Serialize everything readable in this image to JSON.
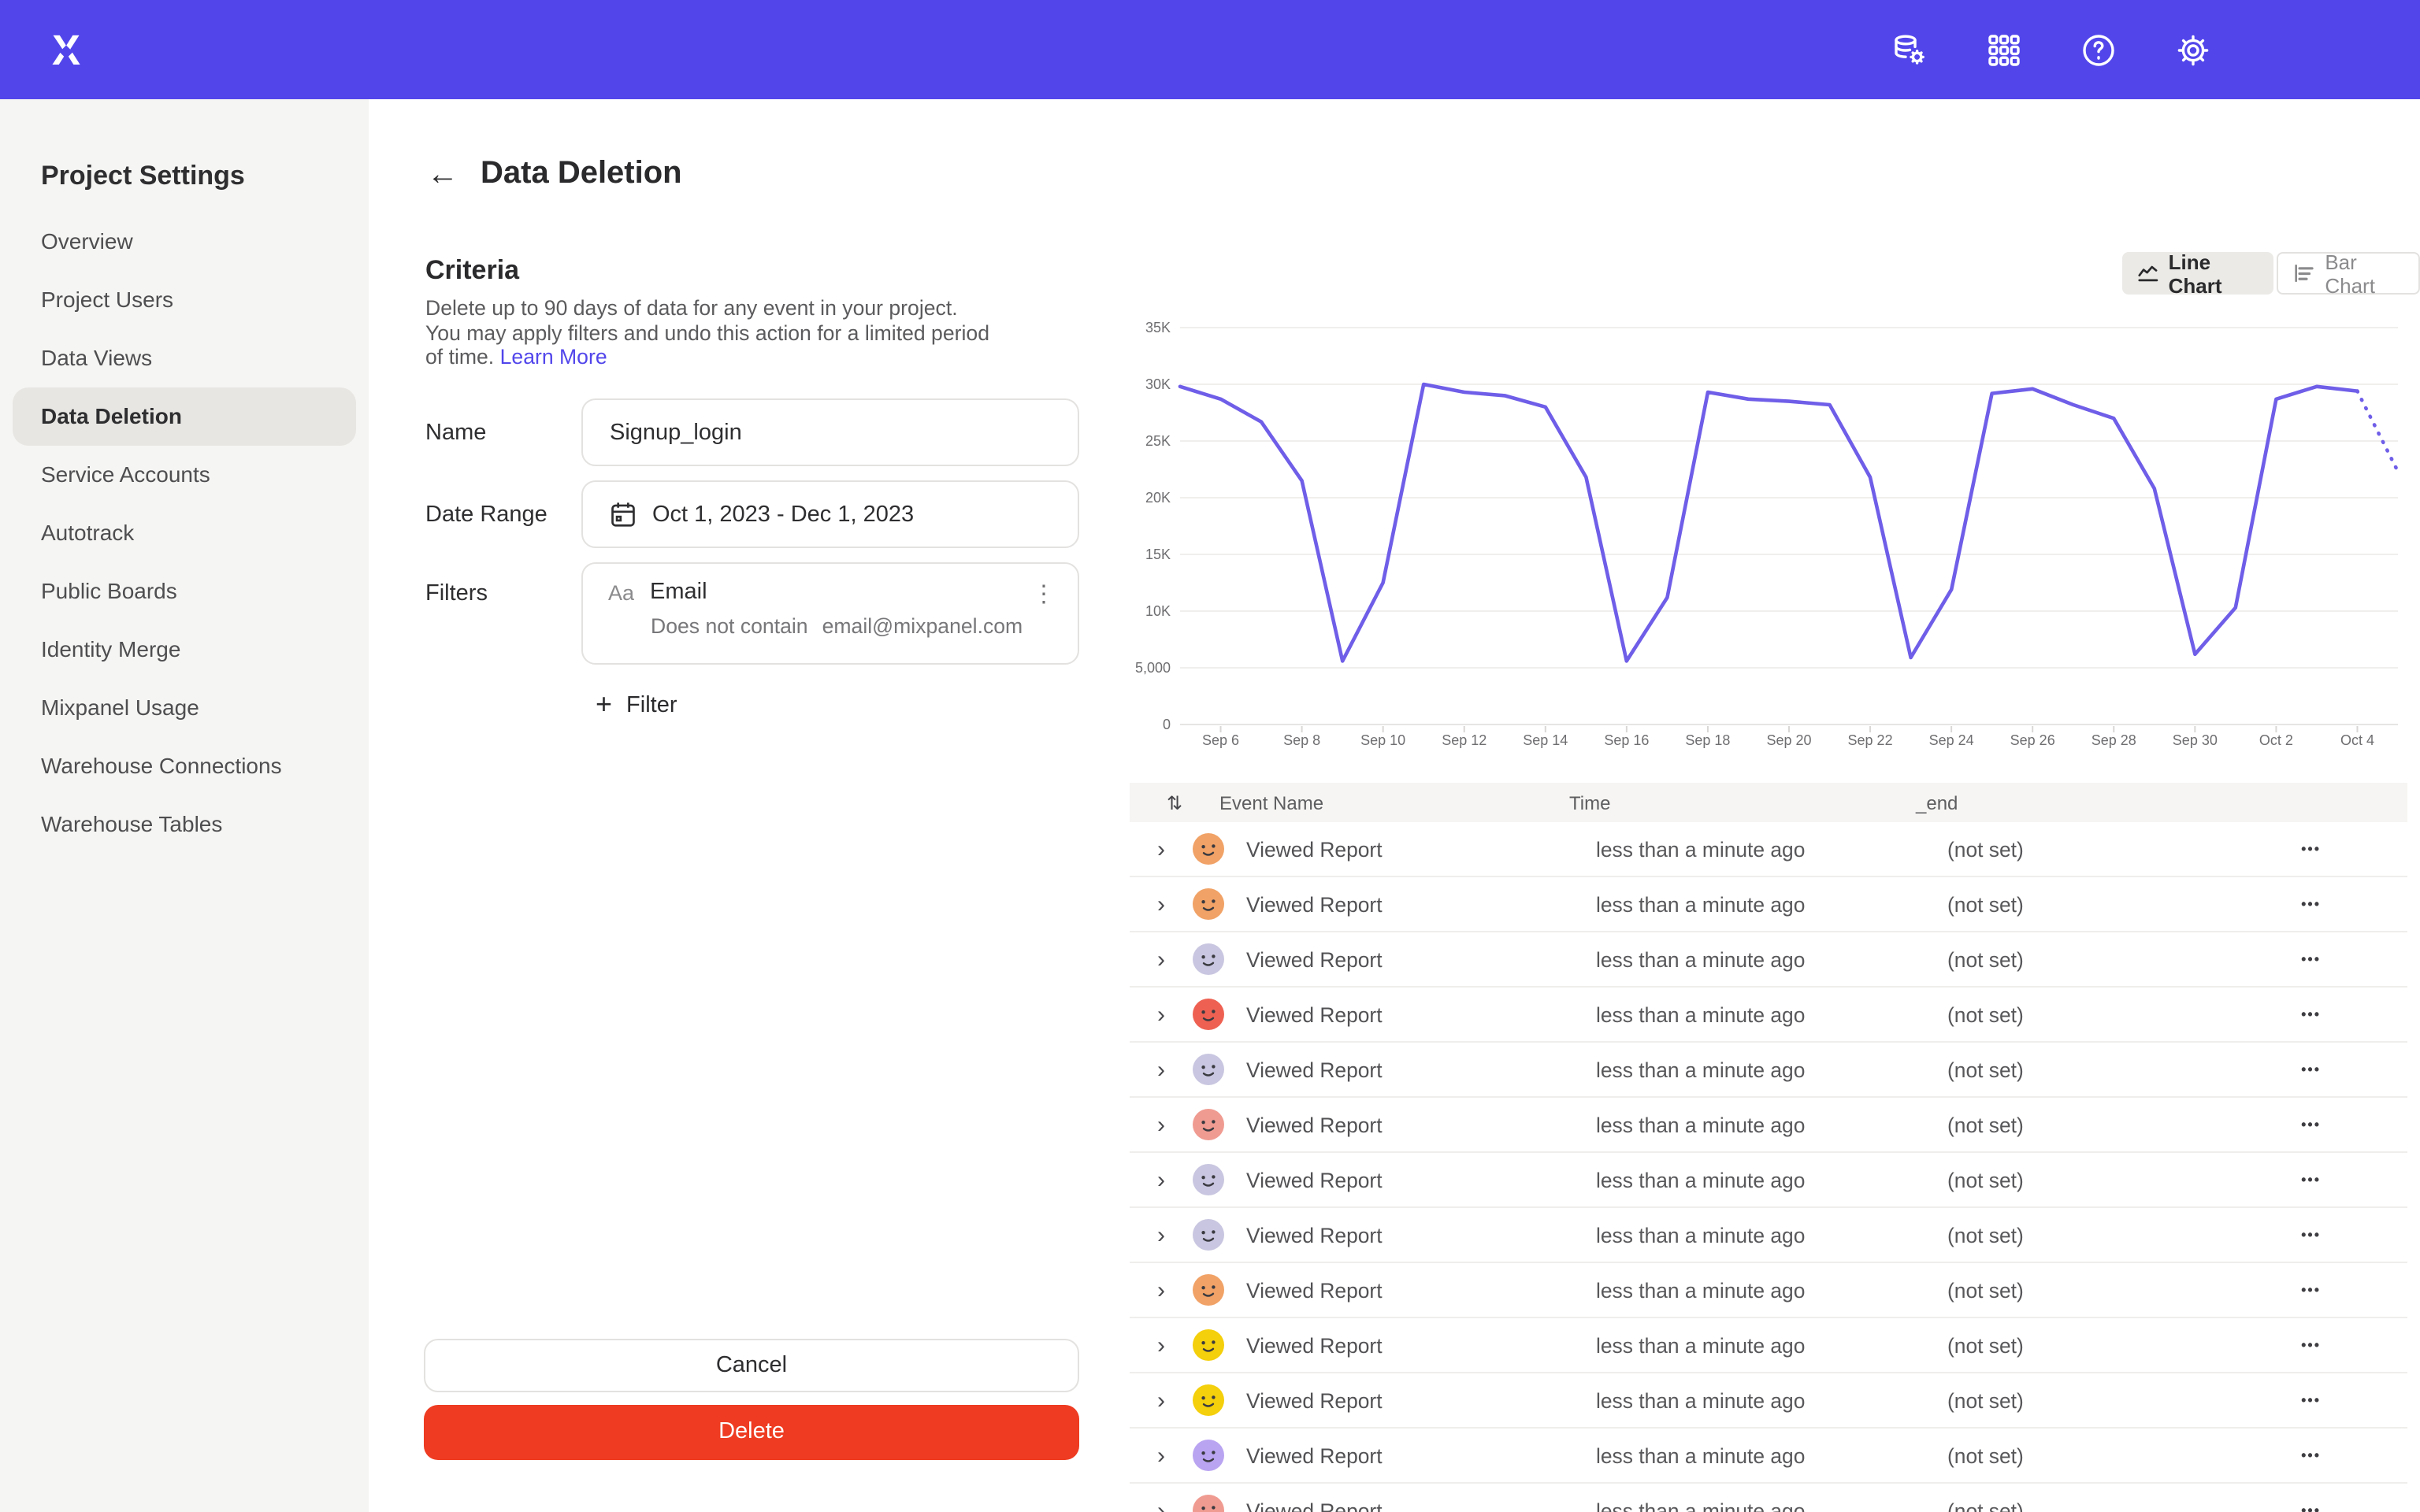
{
  "colors": {
    "topbar_bg": "#5246EB",
    "accent": "#5246EB",
    "line_color": "#6F5EE8",
    "delete_red": "#EE3B21",
    "sidebar_bg": "#F5F5F3",
    "selected_pill": "#E8E6E3"
  },
  "topbar": {
    "icons": [
      "data-management-icon",
      "apps-grid-icon",
      "help-icon",
      "settings-gear-icon"
    ]
  },
  "sidebar": {
    "title": "Project Settings",
    "items": [
      {
        "label": "Overview",
        "active": false
      },
      {
        "label": "Project Users",
        "active": false
      },
      {
        "label": "Data Views",
        "active": false
      },
      {
        "label": "Data Deletion",
        "active": true
      },
      {
        "label": "Service Accounts",
        "active": false
      },
      {
        "label": "Autotrack",
        "active": false
      },
      {
        "label": "Public Boards",
        "active": false
      },
      {
        "label": "Identity Merge",
        "active": false
      },
      {
        "label": "Mixpanel Usage",
        "active": false
      },
      {
        "label": "Warehouse Connections",
        "active": false
      },
      {
        "label": "Warehouse Tables",
        "active": false
      }
    ]
  },
  "header": {
    "back_arrow": "←",
    "title": "Data Deletion"
  },
  "criteria": {
    "heading": "Criteria",
    "description": "Delete up to 90 days of data for any event in your project. You may apply filters and undo this action for a limited period of time.",
    "learn_more": "Learn More",
    "name_label": "Name",
    "name_value": "Signup_login",
    "date_label": "Date Range",
    "date_value": "Oct 1, 2023 - Dec 1, 2023",
    "filters_label": "Filters",
    "filter_type_badge": "Aa",
    "filter_property": "Email",
    "filter_operator": "Does not contain",
    "filter_value": "email@mixpanel.com",
    "add_filter_label": "Filter",
    "plus": "+",
    "cancel_label": "Cancel",
    "delete_label": "Delete"
  },
  "chart_toggle": {
    "line_label": "Line Chart",
    "bar_label": "Bar Chart",
    "selected": "line"
  },
  "chart_data": {
    "type": "line",
    "title": "",
    "xlabel": "",
    "ylabel": "",
    "ylim": [
      0,
      35000
    ],
    "grid": true,
    "x": [
      "Sep 5",
      "Sep 6",
      "Sep 7",
      "Sep 8",
      "Sep 9",
      "Sep 10",
      "Sep 11",
      "Sep 12",
      "Sep 13",
      "Sep 14",
      "Sep 15",
      "Sep 16",
      "Sep 17",
      "Sep 18",
      "Sep 19",
      "Sep 20",
      "Sep 21",
      "Sep 22",
      "Sep 23",
      "Sep 24",
      "Sep 25",
      "Sep 26",
      "Sep 27",
      "Sep 28",
      "Sep 29",
      "Sep 30",
      "Oct 1",
      "Oct 2",
      "Oct 3",
      "Oct 4",
      "Oct 5"
    ],
    "values": [
      29800,
      28700,
      26700,
      21500,
      5600,
      12500,
      30000,
      29300,
      29000,
      28000,
      21800,
      5600,
      11200,
      29300,
      28700,
      28500,
      28200,
      21800,
      5900,
      11900,
      29200,
      29600,
      28200,
      27000,
      20800,
      6200,
      10300,
      28700,
      29800,
      29400,
      22300
    ],
    "forecast_from_index": 29,
    "y_ticks": [
      {
        "v": 0,
        "label": "0"
      },
      {
        "v": 5000,
        "label": "5,000"
      },
      {
        "v": 10000,
        "label": "10K"
      },
      {
        "v": 15000,
        "label": "15K"
      },
      {
        "v": 20000,
        "label": "20K"
      },
      {
        "v": 25000,
        "label": "25K"
      },
      {
        "v": 30000,
        "label": "30K"
      },
      {
        "v": 35000,
        "label": "35K"
      }
    ],
    "x_tick_indices": [
      1,
      3,
      5,
      7,
      9,
      11,
      13,
      15,
      17,
      19,
      21,
      23,
      25,
      27,
      29
    ]
  },
  "table": {
    "sort_icon": "⇅",
    "columns": {
      "event": "Event Name",
      "time": "Time",
      "end": "_end"
    },
    "kebab": "•••",
    "chevron": "›",
    "rows": [
      {
        "event": "Viewed Report",
        "time": "less than a minute ago",
        "end": "(not set)",
        "avatar_color": "#F1A266"
      },
      {
        "event": "Viewed Report",
        "time": "less than a minute ago",
        "end": "(not set)",
        "avatar_color": "#F1A266"
      },
      {
        "event": "Viewed Report",
        "time": "less than a minute ago",
        "end": "(not set)",
        "avatar_color": "#C8C6E0"
      },
      {
        "event": "Viewed Report",
        "time": "less than a minute ago",
        "end": "(not set)",
        "avatar_color": "#EE6152"
      },
      {
        "event": "Viewed Report",
        "time": "less than a minute ago",
        "end": "(not set)",
        "avatar_color": "#C8C6E0"
      },
      {
        "event": "Viewed Report",
        "time": "less than a minute ago",
        "end": "(not set)",
        "avatar_color": "#F09B91"
      },
      {
        "event": "Viewed Report",
        "time": "less than a minute ago",
        "end": "(not set)",
        "avatar_color": "#C8C6E0"
      },
      {
        "event": "Viewed Report",
        "time": "less than a minute ago",
        "end": "(not set)",
        "avatar_color": "#C8C6E0"
      },
      {
        "event": "Viewed Report",
        "time": "less than a minute ago",
        "end": "(not set)",
        "avatar_color": "#F1A266"
      },
      {
        "event": "Viewed Report",
        "time": "less than a minute ago",
        "end": "(not set)",
        "avatar_color": "#F4CF0B"
      },
      {
        "event": "Viewed Report",
        "time": "less than a minute ago",
        "end": "(not set)",
        "avatar_color": "#F4CF0B"
      },
      {
        "event": "Viewed Report",
        "time": "less than a minute ago",
        "end": "(not set)",
        "avatar_color": "#B9A4F1"
      },
      {
        "event": "Viewed Report",
        "time": "less than a minute ago",
        "end": "(not set)",
        "avatar_color": "#F09B91"
      }
    ]
  }
}
